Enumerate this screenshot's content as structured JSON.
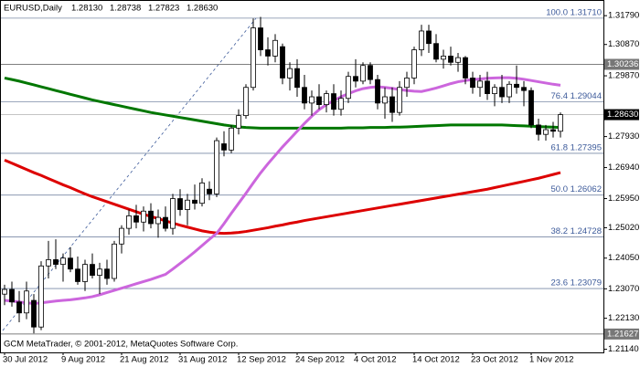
{
  "chart_data": {
    "type": "candlestick",
    "title": "EURUSD,Daily",
    "ohlc_readout": [
      {
        "value": 1.2813,
        "label": "1.28130"
      },
      {
        "value": 1.28738,
        "label": "1.28738"
      },
      {
        "value": 1.27823,
        "label": "1.27823"
      },
      {
        "value": 1.2863,
        "label": "1.28630"
      }
    ],
    "footer": "GCM MetaTrader, © 2001-2012, MetaQuotes Software Corp.",
    "categories": [
      "30 Jul 2012",
      null,
      null,
      null,
      null,
      null,
      null,
      null,
      "9 Aug 2012",
      null,
      null,
      null,
      null,
      null,
      null,
      null,
      "21 Aug 2012",
      null,
      null,
      null,
      null,
      null,
      null,
      null,
      "31 Aug 2012",
      null,
      null,
      null,
      null,
      null,
      null,
      null,
      "12 Sep 2012",
      null,
      null,
      null,
      null,
      null,
      null,
      null,
      "24 Sep 2012",
      null,
      null,
      null,
      null,
      null,
      null,
      null,
      "4 Oct 2012",
      null,
      null,
      null,
      null,
      null,
      null,
      null,
      "14 Oct 2012",
      null,
      null,
      null,
      null,
      null,
      null,
      null,
      "23 Oct 2012",
      null,
      null,
      null,
      null,
      null,
      null,
      null,
      "1 Nov 2012",
      null,
      null,
      null,
      null
    ],
    "open": [
      1.229,
      1.2305,
      1.2265,
      1.223,
      1.227,
      1.2185,
      1.238,
      1.24,
      1.2385,
      1.2405,
      1.237,
      1.233,
      1.2385,
      1.235,
      1.237,
      1.234,
      1.245,
      1.25,
      1.254,
      1.252,
      1.2555,
      1.2515,
      1.2535,
      1.25,
      1.2595,
      1.256,
      1.259,
      1.258,
      1.2625,
      1.261,
      1.277,
      1.275,
      1.282,
      1.286,
      1.295,
      1.314,
      1.307,
      1.305,
      1.308,
      1.298,
      1.301,
      1.295,
      1.29,
      1.292,
      1.2895,
      1.293,
      1.288,
      1.2915,
      1.2985,
      1.297,
      1.302,
      1.2975,
      1.29,
      1.292,
      1.287,
      1.295,
      1.298,
      1.307,
      1.313,
      1.309,
      1.304,
      1.305,
      1.303,
      1.3045,
      1.298,
      1.295,
      1.297,
      1.293,
      1.295,
      1.292,
      1.296,
      1.295,
      1.294,
      1.283,
      1.28,
      1.2815,
      1.281
    ],
    "high": [
      1.232,
      1.233,
      1.23,
      1.233,
      1.229,
      1.2395,
      1.246,
      1.2465,
      1.242,
      1.244,
      1.241,
      1.24,
      1.242,
      1.239,
      1.24,
      1.246,
      1.251,
      1.256,
      1.2575,
      1.257,
      1.258,
      1.256,
      1.257,
      1.261,
      1.2625,
      1.261,
      1.264,
      1.266,
      1.265,
      1.279,
      1.281,
      1.283,
      1.288,
      1.296,
      1.317,
      1.3175,
      1.311,
      1.312,
      1.309,
      1.303,
      1.304,
      1.299,
      1.294,
      1.296,
      1.294,
      1.296,
      1.294,
      1.3,
      1.304,
      1.303,
      1.303,
      1.299,
      1.295,
      1.295,
      1.297,
      1.3,
      1.308,
      1.315,
      1.315,
      1.312,
      1.307,
      1.308,
      1.306,
      1.305,
      1.3,
      1.299,
      1.3,
      1.296,
      1.299,
      1.297,
      1.302,
      1.297,
      1.295,
      1.285,
      1.283,
      1.284,
      1.287
    ],
    "low": [
      1.2255,
      1.225,
      1.22,
      1.221,
      1.2165,
      1.2175,
      1.234,
      1.237,
      1.233,
      1.236,
      1.232,
      1.23,
      1.234,
      1.229,
      1.232,
      1.233,
      1.242,
      1.248,
      1.25,
      1.249,
      1.25,
      1.247,
      1.249,
      1.248,
      1.254,
      1.251,
      1.256,
      1.257,
      1.259,
      1.26,
      1.273,
      1.274,
      1.28,
      1.285,
      1.294,
      1.305,
      1.302,
      1.303,
      1.296,
      1.294,
      1.292,
      1.288,
      1.286,
      1.288,
      1.287,
      1.286,
      1.286,
      1.29,
      1.295,
      1.296,
      1.296,
      1.288,
      1.285,
      1.284,
      1.286,
      1.292,
      1.296,
      1.305,
      1.306,
      1.303,
      1.301,
      1.302,
      1.3,
      1.296,
      1.293,
      1.292,
      1.291,
      1.289,
      1.29,
      1.29,
      1.293,
      1.289,
      1.282,
      1.278,
      1.278,
      1.279,
      1.279
    ],
    "close": [
      1.2305,
      1.2265,
      1.223,
      1.23,
      1.2185,
      1.238,
      1.24,
      1.2385,
      1.2405,
      1.237,
      1.233,
      1.2385,
      1.235,
      1.237,
      1.234,
      1.245,
      1.25,
      1.254,
      1.252,
      1.2555,
      1.2515,
      1.2535,
      1.25,
      1.2595,
      1.256,
      1.259,
      1.258,
      1.2645,
      1.261,
      1.278,
      1.275,
      1.282,
      1.286,
      1.295,
      1.314,
      1.307,
      1.305,
      1.31,
      1.298,
      1.301,
      1.295,
      1.29,
      1.292,
      1.2895,
      1.293,
      1.288,
      1.2915,
      1.2985,
      1.297,
      1.302,
      1.2975,
      1.29,
      1.292,
      1.287,
      1.295,
      1.298,
      1.307,
      1.313,
      1.309,
      1.304,
      1.305,
      1.303,
      1.3045,
      1.298,
      1.295,
      1.297,
      1.293,
      1.295,
      1.292,
      1.296,
      1.295,
      1.294,
      1.283,
      1.28,
      1.2815,
      1.281,
      1.2863
    ],
    "series": [
      {
        "color": "#007700",
        "values": [
          1.298,
          1.2975,
          1.297,
          1.2964,
          1.2958,
          1.2952,
          1.2946,
          1.294,
          1.2934,
          1.2928,
          1.2922,
          1.2916,
          1.291,
          1.2905,
          1.29,
          1.2895,
          1.289,
          1.2885,
          1.288,
          1.2875,
          1.287,
          1.2866,
          1.2862,
          1.2858,
          1.2854,
          1.285,
          1.2846,
          1.2842,
          1.2838,
          1.2834,
          1.283,
          1.2827,
          1.2824,
          1.2822,
          1.2821,
          1.282,
          1.282,
          1.282,
          1.282,
          1.282,
          1.282,
          1.282,
          1.282,
          1.282,
          1.282,
          1.282,
          1.282,
          1.2821,
          1.2821,
          1.2821,
          1.2822,
          1.2822,
          1.2822,
          1.2823,
          1.2823,
          1.2824,
          1.2825,
          1.2826,
          1.2827,
          1.2828,
          1.2829,
          1.283,
          1.283,
          1.283,
          1.283,
          1.283,
          1.283,
          1.283,
          1.283,
          1.2829,
          1.2828,
          1.2827,
          1.2826,
          1.2825,
          1.2824,
          1.2823,
          1.2822
        ]
      },
      {
        "color": "#dd0000",
        "values": [
          1.2718,
          1.2708,
          1.2698,
          1.2688,
          1.2678,
          1.2669,
          1.2659,
          1.2649,
          1.2639,
          1.263,
          1.262,
          1.261,
          1.2601,
          1.2593,
          1.2585,
          1.2577,
          1.2569,
          1.2561,
          1.2553,
          1.2545,
          1.2538,
          1.2531,
          1.2524,
          1.2517,
          1.251,
          1.2504,
          1.2498,
          1.2492,
          1.2488,
          1.2485,
          1.2484,
          1.2485,
          1.2487,
          1.249,
          1.2494,
          1.2498,
          1.2502,
          1.2507,
          1.2511,
          1.2516,
          1.252,
          1.2525,
          1.2529,
          1.2533,
          1.2537,
          1.2541,
          1.2545,
          1.2549,
          1.2553,
          1.2557,
          1.2561,
          1.2565,
          1.2569,
          1.2573,
          1.2577,
          1.2581,
          1.2585,
          1.2589,
          1.2593,
          1.2597,
          1.2601,
          1.2605,
          1.2609,
          1.2613,
          1.2617,
          1.2621,
          1.2625,
          1.263,
          1.2635,
          1.264,
          1.2645,
          1.265,
          1.2655,
          1.266,
          1.2666,
          1.2672,
          1.2678
        ]
      },
      {
        "color": "#cc66dd",
        "values": [
          1.227,
          1.2268,
          1.2265,
          1.2262,
          1.226,
          1.2262,
          1.2265,
          1.2268,
          1.227,
          1.2272,
          1.2275,
          1.2278,
          1.2282,
          1.2288,
          1.2295,
          1.2302,
          1.2309,
          1.2316,
          1.2323,
          1.233,
          1.2337,
          1.2345,
          1.2353,
          1.237,
          1.2388,
          1.2406,
          1.2425,
          1.2445,
          1.2465,
          1.2484,
          1.2515,
          1.2548,
          1.258,
          1.2612,
          1.2645,
          1.2677,
          1.2706,
          1.2733,
          1.276,
          1.2785,
          1.281,
          1.2835,
          1.2858,
          1.2879,
          1.2895,
          1.2908,
          1.292,
          1.293,
          1.2939,
          1.2946,
          1.295,
          1.2952,
          1.295,
          1.2947,
          1.2943,
          1.294,
          1.2938,
          1.2937,
          1.2942,
          1.2948,
          1.2955,
          1.2962,
          1.2968,
          1.2972,
          1.2975,
          1.2977,
          1.2979,
          1.298,
          1.2981,
          1.2981,
          1.2979,
          1.2976,
          1.2972,
          1.2968,
          1.2964,
          1.296,
          1.2957
        ]
      }
    ],
    "fib_levels": [
      {
        "value": 1.3171,
        "label": "100.0 1.31710"
      },
      {
        "value": 1.29044,
        "label": "76.4 1.29044"
      },
      {
        "value": 1.27395,
        "label": "61.8 1.27395"
      },
      {
        "value": 1.26062,
        "label": "50.0 1.26062"
      },
      {
        "value": 1.24728,
        "label": "38.2 1.24728"
      },
      {
        "value": 1.23079,
        "label": "23.6 1.23079"
      }
    ],
    "price_labels": [
      {
        "value": 1.30236,
        "label": "1.30236"
      },
      {
        "value": 1.2863,
        "label": "1.28630"
      },
      {
        "value": 1.21627,
        "label": "1.21627"
      }
    ],
    "ylim": [
      1.2104,
      1.3229
    ],
    "yticks": [
      {
        "value": 1.3179,
        "label": "1.31790"
      },
      {
        "value": 1.3087,
        "label": "1.30870"
      },
      {
        "value": 1.2987,
        "label": "1.29870"
      },
      {
        "value": 1.2793,
        "label": "1.27930"
      },
      {
        "value": 1.2694,
        "label": "1.26940"
      },
      {
        "value": 1.2595,
        "label": "1.25950"
      },
      {
        "value": 1.2502,
        "label": "1.25020"
      },
      {
        "value": 1.2405,
        "label": "1.24050"
      },
      {
        "value": 1.2307,
        "label": "1.23070"
      },
      {
        "value": 1.2213,
        "label": "1.22130"
      },
      {
        "value": 1.2114,
        "label": "1.21140"
      }
    ]
  }
}
